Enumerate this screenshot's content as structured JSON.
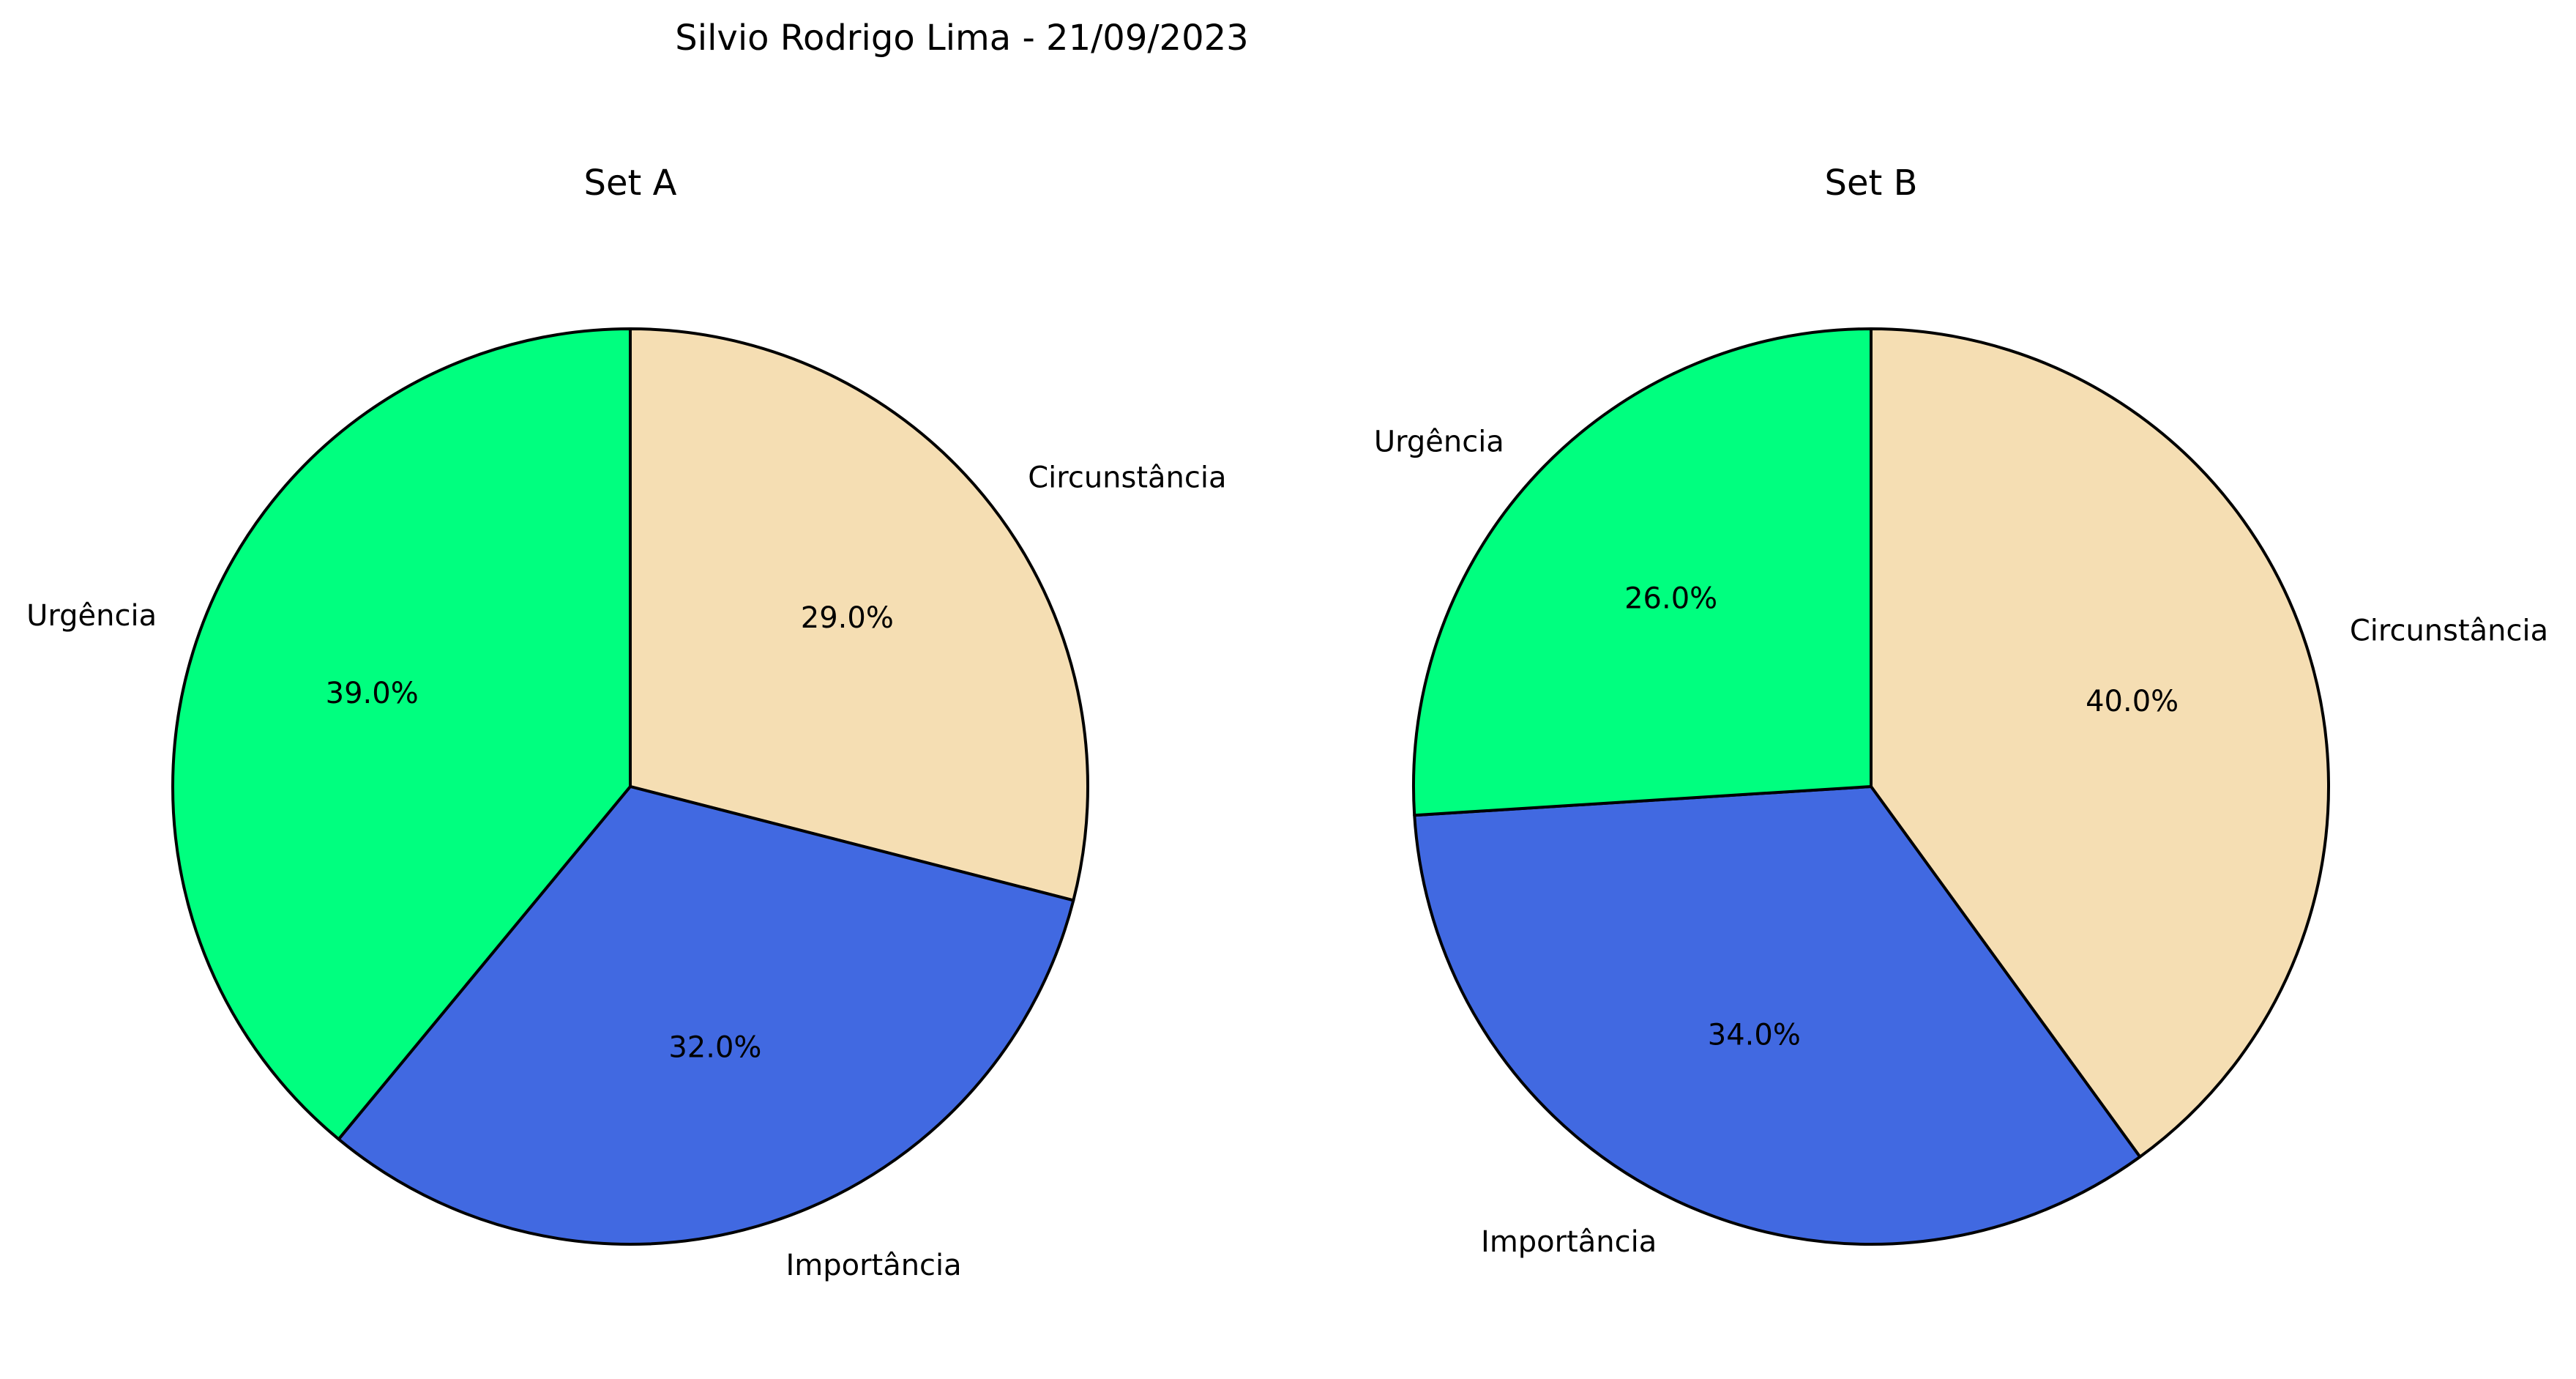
{
  "figure": {
    "title": "Silvio Rodrigo Lima - 21/09/2023"
  },
  "colors": {
    "Urgência": "#00ff7f",
    "Importância": "#4169e1",
    "Circunstância": "#f5deb3",
    "edge": "#000000"
  },
  "chart_data": [
    {
      "type": "pie",
      "title": "Set A",
      "start_angle": 90,
      "direction": "counterclockwise",
      "slices": [
        {
          "label": "Urgência",
          "value": 39.0,
          "pct_label": "39.0%"
        },
        {
          "label": "Importância",
          "value": 32.0,
          "pct_label": "32.0%"
        },
        {
          "label": "Circunstância",
          "value": 29.0,
          "pct_label": "29.0%"
        }
      ]
    },
    {
      "type": "pie",
      "title": "Set B",
      "start_angle": 90,
      "direction": "counterclockwise",
      "slices": [
        {
          "label": "Urgência",
          "value": 26.0,
          "pct_label": "26.0%"
        },
        {
          "label": "Importância",
          "value": 34.0,
          "pct_label": "34.0%"
        },
        {
          "label": "Circunstância",
          "value": 40.0,
          "pct_label": "40.0%"
        }
      ]
    }
  ]
}
